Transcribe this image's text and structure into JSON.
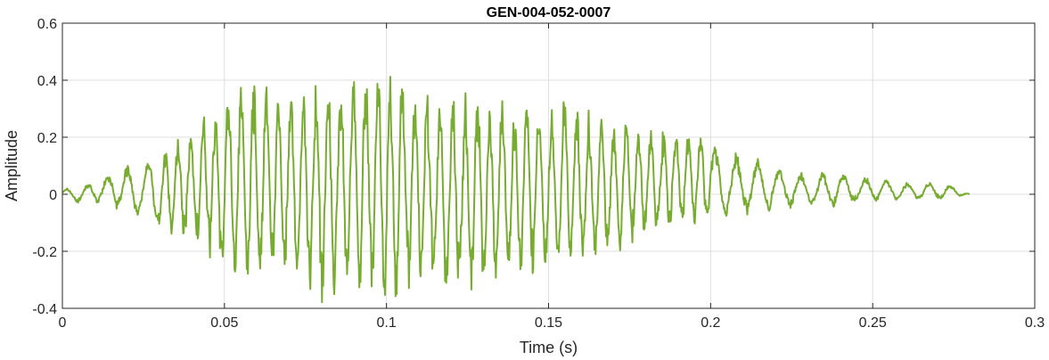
{
  "chart_data": {
    "type": "line",
    "title": "GEN-004-052-0007",
    "xlabel": "Time (s)",
    "ylabel": "Amplitude",
    "xlim": [
      0,
      0.3
    ],
    "ylim": [
      -0.4,
      0.6
    ],
    "xticks": [
      0,
      0.05,
      0.1,
      0.15,
      0.2,
      0.25,
      0.3
    ],
    "xtick_labels": [
      "0",
      "0.05",
      "0.1",
      "0.15",
      "0.2",
      "0.25",
      "0.3"
    ],
    "yticks": [
      -0.4,
      -0.2,
      0,
      0.2,
      0.4,
      0.6
    ],
    "ytick_labels": [
      "-0.4",
      "-0.2",
      "0",
      "0.2",
      "0.4",
      "0.6"
    ],
    "grid": true,
    "line_color": "#77ac30",
    "series": [
      {
        "x": [
          0,
          0.005,
          0.01,
          0.015,
          0.02,
          0.025,
          0.03,
          0.035,
          0.04,
          0.045,
          0.05,
          0.055,
          0.06,
          0.065,
          0.07,
          0.075,
          0.08,
          0.085,
          0.09,
          0.095,
          0.1,
          0.105,
          0.11,
          0.115,
          0.12,
          0.125,
          0.13,
          0.135,
          0.14,
          0.145,
          0.15,
          0.155,
          0.16,
          0.165,
          0.17,
          0.175,
          0.18,
          0.185,
          0.19,
          0.195,
          0.2,
          0.205,
          0.21,
          0.215,
          0.22,
          0.225,
          0.23,
          0.235,
          0.24,
          0.245,
          0.25,
          0.255,
          0.26,
          0.265,
          0.27,
          0.275,
          0.28
        ],
        "envelope_upper": [
          0.02,
          0.02,
          0.05,
          0.08,
          0.1,
          0.12,
          0.15,
          0.19,
          0.22,
          0.3,
          0.36,
          0.4,
          0.39,
          0.37,
          0.35,
          0.38,
          0.41,
          0.42,
          0.44,
          0.43,
          0.46,
          0.4,
          0.37,
          0.35,
          0.36,
          0.34,
          0.37,
          0.36,
          0.3,
          0.33,
          0.3,
          0.35,
          0.28,
          0.27,
          0.26,
          0.27,
          0.24,
          0.23,
          0.22,
          0.23,
          0.18,
          0.15,
          0.13,
          0.12,
          0.1,
          0.08,
          0.07,
          0.08,
          0.08,
          0.06,
          0.06,
          0.05,
          0.04,
          0.04,
          0.04,
          0.03,
          0.0
        ],
        "envelope_lower": [
          -0.01,
          -0.03,
          -0.03,
          -0.04,
          -0.07,
          -0.09,
          -0.12,
          -0.14,
          -0.17,
          -0.22,
          -0.28,
          -0.32,
          -0.3,
          -0.28,
          -0.3,
          -0.33,
          -0.36,
          -0.35,
          -0.34,
          -0.35,
          -0.38,
          -0.33,
          -0.32,
          -0.34,
          -0.33,
          -0.35,
          -0.34,
          -0.3,
          -0.31,
          -0.3,
          -0.29,
          -0.26,
          -0.24,
          -0.23,
          -0.22,
          -0.19,
          -0.15,
          -0.14,
          -0.12,
          -0.12,
          -0.1,
          -0.09,
          -0.07,
          -0.06,
          -0.06,
          -0.05,
          -0.04,
          -0.05,
          -0.04,
          -0.03,
          -0.03,
          -0.02,
          -0.02,
          -0.02,
          -0.02,
          -0.01,
          0.0
        ]
      }
    ]
  }
}
